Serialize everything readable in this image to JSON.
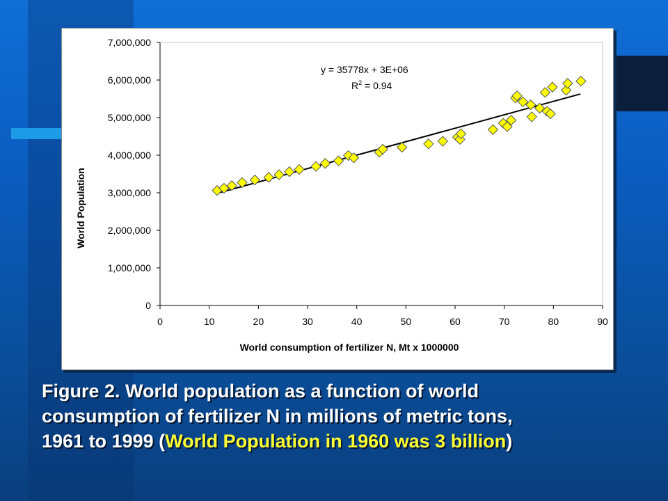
{
  "colors": {
    "background": "#0b5cbf",
    "marker_fill": "#ffff00",
    "marker_stroke": "#555555",
    "trendline": "#000000",
    "caption_text": "#ffffff",
    "caption_highlight": "#ffff33"
  },
  "chart_data": {
    "type": "scatter",
    "title": "",
    "xlabel": "World consumption of fertilizer N, Mt x 1000000",
    "ylabel": "World Population",
    "xlim": [
      0,
      90
    ],
    "ylim": [
      0,
      7000000
    ],
    "xticks": [
      0,
      10,
      20,
      30,
      40,
      50,
      60,
      70,
      80,
      90
    ],
    "yticks": [
      0,
      1000000,
      2000000,
      3000000,
      4000000,
      5000000,
      6000000,
      7000000
    ],
    "ytick_labels": [
      "0",
      "1,000,000",
      "2,000,000",
      "3,000,000",
      "4,000,000",
      "5,000,000",
      "6,000,000",
      "7,000,000"
    ],
    "grid": false,
    "trendline": {
      "equation": "y = 35778x  + 3E+06",
      "r_squared_label": "R",
      "r_squared_sup": "2",
      "r_squared_value": " = 0.94",
      "x_range": [
        11.5,
        85.5
      ],
      "slope": 35778,
      "intercept": 2570000
    },
    "series": [
      {
        "x": [
          11.6,
          13.0,
          14.6,
          16.7,
          19.3,
          22.1,
          24.2,
          26.3,
          28.3,
          31.7,
          33.6,
          36.3,
          38.3,
          39.4,
          44.6,
          45.3,
          49.2,
          54.6,
          57.5,
          60.5,
          61.0,
          61.2,
          67.7,
          69.8,
          70.6,
          71.4,
          72.3,
          72.6,
          73.8,
          75.4,
          75.6,
          77.2,
          78.3,
          78.7,
          79.4,
          79.8,
          82.6,
          82.9,
          85.6
        ],
        "y": [
          3060000,
          3120000,
          3190000,
          3270000,
          3340000,
          3410000,
          3480000,
          3560000,
          3620000,
          3700000,
          3780000,
          3850000,
          3990000,
          3930000,
          4080000,
          4160000,
          4210000,
          4300000,
          4370000,
          4480000,
          4420000,
          4570000,
          4680000,
          4850000,
          4760000,
          4930000,
          5520000,
          5580000,
          5420000,
          5340000,
          5020000,
          5250000,
          5670000,
          5170000,
          5100000,
          5810000,
          5730000,
          5910000,
          5970000
        ]
      }
    ]
  },
  "caption": {
    "line1": "Figure 2.  World population as a function of world",
    "line2": "consumption of fertilizer N in millions of metric tons,",
    "line3_prefix": "1961 to 1999 (",
    "line3_highlight": "World Population in 1960 was 3 billion",
    "line3_suffix": ")"
  }
}
